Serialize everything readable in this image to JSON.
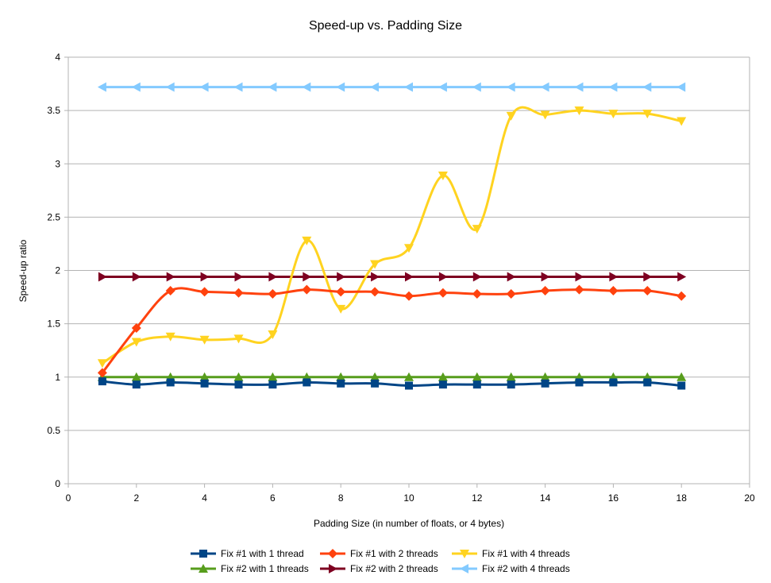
{
  "chart_data": {
    "type": "line",
    "title": "Speed-up vs. Padding Size",
    "xlabel": "Padding Size (in number of floats, or 4 bytes)",
    "ylabel": "Speed-up ratio",
    "xlim": [
      0,
      20
    ],
    "ylim": [
      0,
      4
    ],
    "x_ticks": [
      "0",
      "2",
      "4",
      "6",
      "8",
      "10",
      "12",
      "14",
      "16",
      "18",
      "20"
    ],
    "y_ticks": [
      "0",
      "0.5",
      "1",
      "1.5",
      "2",
      "2.5",
      "3",
      "3.5",
      "4"
    ],
    "grid": "horizontal",
    "legend_position": "bottom",
    "x": [
      1,
      2,
      3,
      4,
      5,
      6,
      7,
      8,
      9,
      10,
      11,
      12,
      13,
      14,
      15,
      16,
      17,
      18
    ],
    "series": [
      {
        "name": "Fix #1 with 1 thread",
        "color": "#004586",
        "marker": "square",
        "values": [
          0.96,
          0.93,
          0.95,
          0.94,
          0.93,
          0.93,
          0.95,
          0.94,
          0.94,
          0.92,
          0.93,
          0.93,
          0.93,
          0.94,
          0.95,
          0.95,
          0.95,
          0.92
        ]
      },
      {
        "name": "Fix #1 with 2 threads",
        "color": "#ff420e",
        "marker": "diamond",
        "values": [
          1.04,
          1.46,
          1.81,
          1.8,
          1.79,
          1.78,
          1.82,
          1.8,
          1.8,
          1.76,
          1.79,
          1.78,
          1.78,
          1.81,
          1.82,
          1.81,
          1.81,
          1.76
        ]
      },
      {
        "name": "Fix #1 with 4 threads",
        "color": "#ffd320",
        "marker": "triangle-down",
        "values": [
          1.13,
          1.33,
          1.38,
          1.35,
          1.36,
          1.4,
          2.28,
          1.64,
          2.06,
          2.21,
          2.89,
          2.39,
          3.45,
          3.46,
          3.5,
          3.47,
          3.47,
          3.4
        ]
      },
      {
        "name": "Fix #2 with 1 threads",
        "color": "#579d1c",
        "marker": "triangle-up",
        "values": [
          1.0,
          1.0,
          1.0,
          1.0,
          1.0,
          1.0,
          1.0,
          1.0,
          1.0,
          1.0,
          1.0,
          1.0,
          1.0,
          1.0,
          1.0,
          1.0,
          1.0,
          1.0
        ]
      },
      {
        "name": "Fix #2 with 2 threads",
        "color": "#7e0021",
        "marker": "triangle-right",
        "values": [
          1.94,
          1.94,
          1.94,
          1.94,
          1.94,
          1.94,
          1.94,
          1.94,
          1.94,
          1.94,
          1.94,
          1.94,
          1.94,
          1.94,
          1.94,
          1.94,
          1.94,
          1.94
        ]
      },
      {
        "name": "Fix #2 with 4 threads",
        "color": "#83caff",
        "marker": "triangle-left",
        "values": [
          3.72,
          3.72,
          3.72,
          3.72,
          3.72,
          3.72,
          3.72,
          3.72,
          3.72,
          3.72,
          3.72,
          3.72,
          3.72,
          3.72,
          3.72,
          3.72,
          3.72,
          3.72
        ]
      }
    ]
  }
}
